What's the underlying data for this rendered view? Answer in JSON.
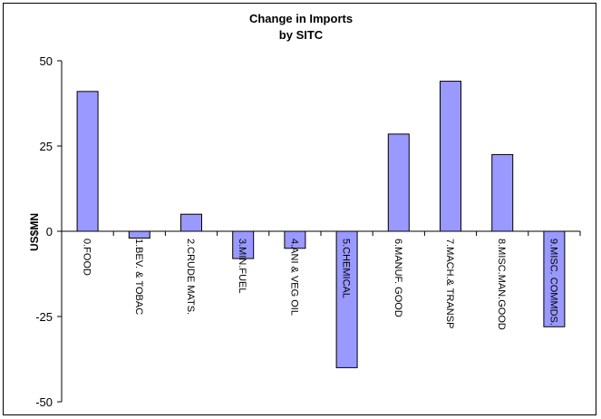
{
  "chart_data": {
    "type": "bar",
    "title": [
      "Change in Imports",
      "by SITC"
    ],
    "xlabel": "",
    "ylabel": "US$MN",
    "ylim": [
      -50,
      50
    ],
    "yticks": [
      50,
      25,
      0,
      -25,
      -50
    ],
    "grid": false,
    "legend": "none",
    "categories": [
      "0.FOOD",
      "1.BEV. & TOBAC",
      "2.CRUDE MATS.",
      "3.MIN.FUEL",
      "4.ANI & VEG OIL",
      "5.CHEMICAL",
      "6.MANUF. GOOD",
      "7.MACH.& TRANSP",
      "8.MISC.MAN.GOOD",
      "9.MISC. COMMDS."
    ],
    "values": [
      41,
      -2,
      5,
      -8,
      -5,
      -40,
      28.5,
      44,
      22.5,
      -28
    ],
    "bar_color": "#9999ff",
    "bar_stroke": "#000000"
  }
}
